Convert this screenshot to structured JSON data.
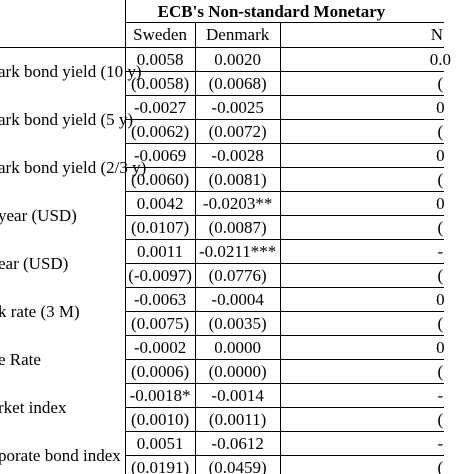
{
  "table": {
    "title": "ECB's Non-standard Monetary",
    "columns": [
      "Sweden",
      "Denmark",
      "N"
    ],
    "rows": [
      {
        "label": "ark bond yield (10 y)",
        "coef": [
          "0.0058",
          "0.0020",
          "0.0"
        ],
        "se": [
          "(0.0058)",
          "(0.0068)",
          "("
        ]
      },
      {
        "label": "ark bond yield (5 y)",
        "coef": [
          "-0.0027",
          "-0.0025",
          "0"
        ],
        "se": [
          "(0.0062)",
          "(0.0072)",
          "("
        ]
      },
      {
        "label": "ark bond yield (2/3 y)",
        "coef": [
          "-0.0069",
          "-0.0028",
          "0"
        ],
        "se": [
          "(0.0060)",
          "(0.0081)",
          "("
        ]
      },
      {
        "label": "year (USD)",
        "coef": [
          "0.0042",
          "-0.0203**",
          "0"
        ],
        "se": [
          "(0.0107)",
          "(0.0087)",
          "("
        ]
      },
      {
        "label": "ear (USD)",
        "coef": [
          "0.0011",
          "-0.0211***",
          "-"
        ],
        "se": [
          "(-0.0097)",
          "(0.0776)",
          "("
        ]
      },
      {
        "label": "k rate (3 M)",
        "coef": [
          "-0.0063",
          "-0.0004",
          "0"
        ],
        "se": [
          "(0.0075)",
          "(0.0035)",
          "("
        ]
      },
      {
        "label": "e Rate",
        "coef": [
          "-0.0002",
          "0.0000",
          "0"
        ],
        "se": [
          "(0.0006)",
          "(0.0000)",
          "("
        ]
      },
      {
        "label": "rket index",
        "coef": [
          "-0.0018*",
          "-0.0014",
          "-"
        ],
        "se": [
          "(0.0010)",
          "(0.0011)",
          "("
        ]
      },
      {
        "label": "porate bond index",
        "coef": [
          "0.0051",
          "-0.0612",
          "-"
        ],
        "se": [
          "(0.0191)",
          "(0.0459)",
          "("
        ]
      }
    ]
  }
}
